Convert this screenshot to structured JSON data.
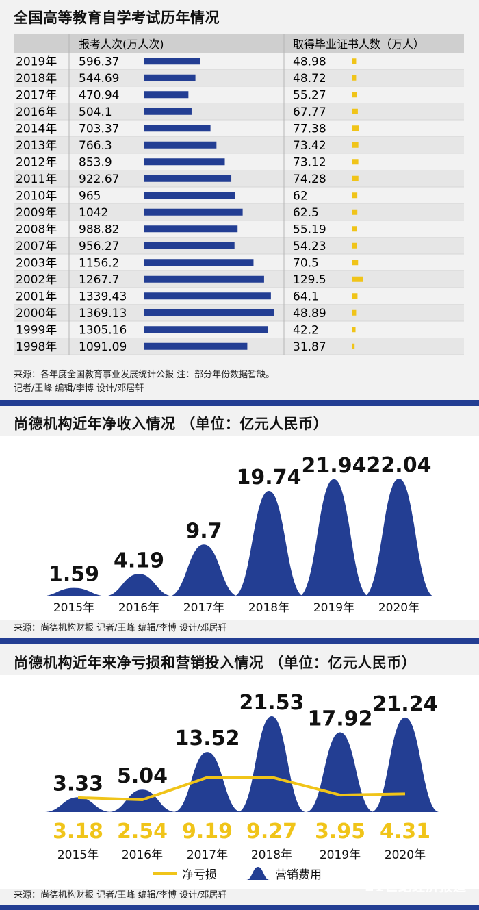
{
  "section1": {
    "title": "全国高等教育自学考试历年情况",
    "source": "来源：各年度全国教育事业发展统计公报  注：部分年份数据暂缺。",
    "credits": "记者/王峰   编辑/李博   设计/邓居轩"
  },
  "section2": {
    "title": "尚德机构近年净收入情况 （单位：亿元人民币）",
    "source": "来源：尚德机构财报  记者/王峰  编辑/李博   设计/邓居轩"
  },
  "section3": {
    "title": "尚德机构近年来净亏损和营销投入情况 （单位：亿元人民币）",
    "source": "来源：尚德机构财报  记者/王峰  编辑/李博   设计/邓居轩"
  },
  "brand": {
    "cn": "21世纪经济报道",
    "en": "21st CENTURY BUSINESS HERALD"
  },
  "colors": {
    "navy": "#233e93",
    "gold": "#f0c419",
    "table_header": "#cfcfcf",
    "row_alt": "#e6e6e6"
  },
  "chart_data": [
    {
      "type": "table",
      "columns": [
        "",
        "报考人次(万人次)",
        "取得毕业证书人数（万人）"
      ],
      "rows": [
        {
          "year": "2019年",
          "applicants": "596.37",
          "graduates": "48.98"
        },
        {
          "year": "2018年",
          "applicants": "544.69",
          "graduates": "48.72"
        },
        {
          "year": "2017年",
          "applicants": "470.94",
          "graduates": "55.27"
        },
        {
          "year": "2016年",
          "applicants": "504.1",
          "graduates": "67.77"
        },
        {
          "year": "2014年",
          "applicants": "703.37",
          "graduates": "77.38"
        },
        {
          "year": "2013年",
          "applicants": "766.3",
          "graduates": "73.42"
        },
        {
          "year": "2012年",
          "applicants": "853.9",
          "graduates": "73.12"
        },
        {
          "year": "2011年",
          "applicants": "922.67",
          "graduates": "74.28"
        },
        {
          "year": "2010年",
          "applicants": "965",
          "graduates": "62"
        },
        {
          "year": "2009年",
          "applicants": "1042",
          "graduates": "62.5"
        },
        {
          "year": "2008年",
          "applicants": "988.82",
          "graduates": "55.19"
        },
        {
          "year": "2007年",
          "applicants": "956.27",
          "graduates": "54.23"
        },
        {
          "year": "2003年",
          "applicants": "1156.2",
          "graduates": "70.5"
        },
        {
          "year": "2002年",
          "applicants": "1267.7",
          "graduates": "129.5"
        },
        {
          "year": "2001年",
          "applicants": "1339.43",
          "graduates": "64.1"
        },
        {
          "year": "2000年",
          "applicants": "1369.13",
          "graduates": "48.89"
        },
        {
          "year": "1999年",
          "applicants": "1305.16",
          "graduates": "42.2"
        },
        {
          "year": "1998年",
          "applicants": "1091.09",
          "graduates": "31.87"
        }
      ]
    },
    {
      "type": "area",
      "categories": [
        "2015年",
        "2016年",
        "2017年",
        "2018年",
        "2019年",
        "2020年"
      ],
      "values": [
        1.59,
        4.19,
        9.7,
        19.74,
        21.94,
        22.04
      ],
      "labels": [
        "1.59",
        "4.19",
        "9.7",
        "19.74",
        "21.94",
        "22.04"
      ],
      "ylim": [
        0,
        22.04
      ]
    },
    {
      "type": "area",
      "categories": [
        "2015年",
        "2016年",
        "2017年",
        "2018年",
        "2019年",
        "2020年"
      ],
      "series": [
        {
          "name": "营销费用",
          "type": "area",
          "values": [
            3.33,
            5.04,
            13.52,
            21.53,
            17.92,
            21.24
          ],
          "labels": [
            "3.33",
            "5.04",
            "13.52",
            "21.53",
            "17.92",
            "21.24"
          ]
        },
        {
          "name": "净亏损",
          "type": "line",
          "values": [
            3.18,
            2.54,
            9.19,
            9.27,
            3.95,
            4.31
          ],
          "labels": [
            "3.18",
            "2.54",
            "9.19",
            "9.27",
            "3.95",
            "4.31"
          ]
        }
      ],
      "legend": "bottom-center",
      "ylim": [
        0,
        21.53
      ]
    }
  ]
}
